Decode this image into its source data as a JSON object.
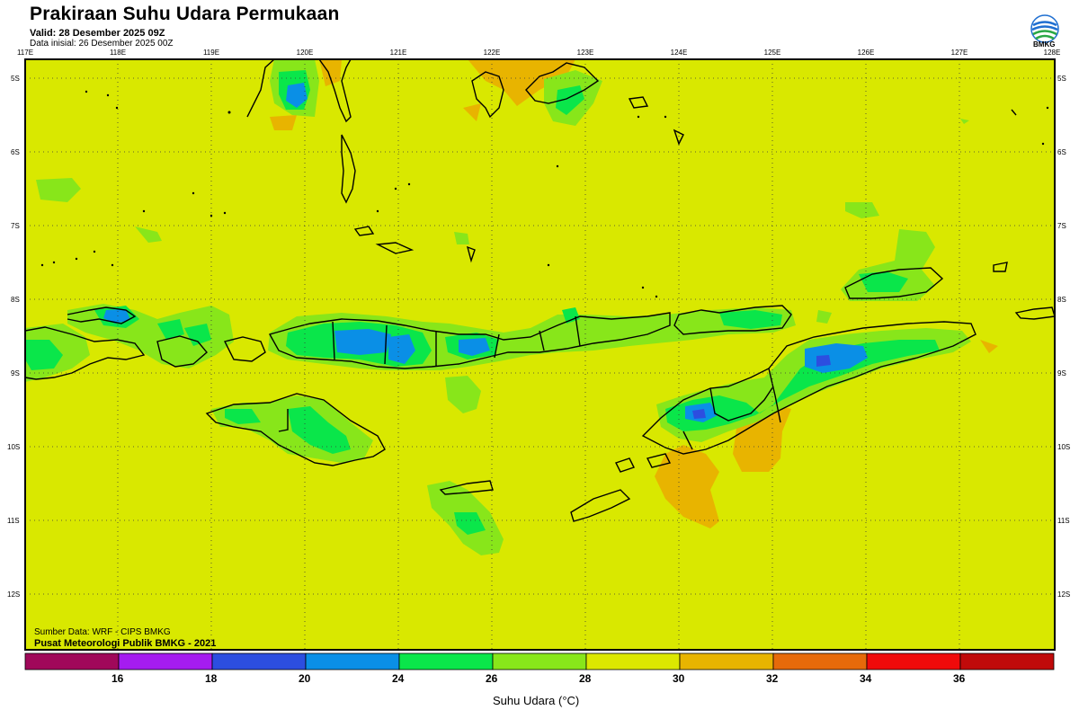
{
  "header": {
    "title": "Prakiraan Suhu Udara Permukaan",
    "valid": "Valid: 28 Desember 2025 09Z",
    "initial": "Data inisial: 26 Desember 2025 00Z",
    "logo_text": "BMKG"
  },
  "map": {
    "lon_labels": [
      "117E",
      "118E",
      "119E",
      "120E",
      "121E",
      "122E",
      "123E",
      "124E",
      "125E",
      "126E",
      "127E",
      "128E"
    ],
    "lat_labels": [
      "5S",
      "6S",
      "7S",
      "8S",
      "9S",
      "10S",
      "11S",
      "12S"
    ],
    "lon_range": [
      117,
      128
    ],
    "lat_range": [
      -4.8,
      -12.8
    ],
    "grid": true,
    "colors": {
      "background_field": "#d9e800",
      "cool_green": "#8ee617",
      "green": "#1ee64a",
      "blue": "#1c8fe6",
      "warm_orange": "#e8b800",
      "coast": "#000000"
    }
  },
  "credits": {
    "source": "Sumber Data: WRF - CIPS BMKG",
    "org": "Pusat Meteorologi Publik BMKG - 2021"
  },
  "colorbar": {
    "title": "Suhu Udara (°C)",
    "colors": [
      "#a0085a",
      "#a51cf0",
      "#2c4ee0",
      "#0a8fe6",
      "#0ae64a",
      "#88e61a",
      "#dce800",
      "#e8b400",
      "#e66a0a",
      "#f00a0a",
      "#c00a0a"
    ],
    "labels": [
      "16",
      "18",
      "20",
      "24",
      "26",
      "28",
      "30",
      "32",
      "34",
      "36"
    ]
  }
}
